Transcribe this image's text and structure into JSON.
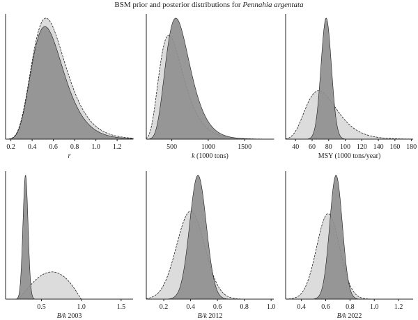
{
  "figure": {
    "title_prefix": "BSM prior and posterior distributions for",
    "title_species": "Pennahia argentata"
  },
  "legend": {
    "prior": {
      "fill": "#dcdcdc"
    },
    "posterior": {
      "fill": "#8f8f8f"
    }
  },
  "chart_data": [
    {
      "type": "area",
      "xlabel_italic": "r",
      "xlabel_rest": "",
      "xlim": [
        0.15,
        1.35
      ],
      "xticks": [
        0.2,
        0.4,
        0.6,
        0.8,
        1.0,
        1.2
      ],
      "xtick_labels": [
        "0.2",
        "0.4",
        "0.6",
        "0.8",
        "1.0",
        "1.2"
      ],
      "series": [
        {
          "role": "prior",
          "dist": "lognormal",
          "mode": 0.53,
          "sd": 0.3
        },
        {
          "role": "posterior",
          "dist": "lognormal",
          "mode": 0.52,
          "sd": 0.29,
          "height": 0.93
        }
      ]
    },
    {
      "type": "area",
      "xlabel_italic": "k",
      "xlabel_rest": " (1000 tons)",
      "xlim": [
        150,
        1900
      ],
      "xticks": [
        500,
        1000,
        1500
      ],
      "xtick_labels": [
        "500",
        "1000",
        "1500"
      ],
      "series": [
        {
          "role": "prior",
          "dist": "lognormal",
          "mode": 460,
          "sd": 0.36,
          "height": 0.86
        },
        {
          "role": "posterior",
          "dist": "lognormal",
          "mode": 555,
          "sd": 0.3
        }
      ]
    },
    {
      "type": "area",
      "xlabel_italic": "",
      "xlabel_rest": "MSY (1000 tons/year)",
      "xlim": [
        28,
        182
      ],
      "xticks": [
        40,
        60,
        80,
        100,
        120,
        140,
        160,
        180
      ],
      "xtick_labels": [
        "40",
        "60",
        "80",
        "100",
        "120",
        "140",
        "160",
        "180"
      ],
      "series": [
        {
          "role": "prior",
          "dist": "lognormal",
          "mode": 68,
          "sd": 0.28,
          "height": 0.4
        },
        {
          "role": "posterior",
          "dist": "normal",
          "mean": 77,
          "sd": 6.3
        }
      ]
    },
    {
      "type": "area",
      "xlabel_italic": "B/k",
      "xlabel_rest": " 2003",
      "xlim": [
        0.05,
        1.65
      ],
      "xticks": [
        0.5,
        1.0,
        1.5
      ],
      "xtick_labels": [
        "0.5",
        "1.0",
        "1.5"
      ],
      "series": [
        {
          "role": "prior",
          "dist": "beta",
          "range": [
            0.2,
            1.0
          ],
          "alpha": 2.3,
          "beta": 2.1,
          "height": 0.22
        },
        {
          "role": "posterior",
          "dist": "normal",
          "mean": 0.3,
          "sd": 0.032
        }
      ]
    },
    {
      "type": "area",
      "xlabel_italic": "B/k",
      "xlabel_rest": " 2012",
      "xlim": [
        0.07,
        1.02
      ],
      "xticks": [
        0.2,
        0.4,
        0.6,
        0.8,
        1.0
      ],
      "xtick_labels": [
        "0.2",
        "0.4",
        "0.6",
        "0.8",
        "1.0"
      ],
      "series": [
        {
          "role": "prior",
          "dist": "normal",
          "mean": 0.4,
          "sd": 0.105,
          "height": 0.71
        },
        {
          "role": "posterior",
          "dist": "normal",
          "mean": 0.455,
          "sd": 0.062
        }
      ]
    },
    {
      "type": "area",
      "xlabel_italic": "B/k",
      "xlabel_rest": " 2022",
      "xlim": [
        0.27,
        1.32
      ],
      "xticks": [
        0.4,
        0.6,
        0.8,
        1.0,
        1.2
      ],
      "xtick_labels": [
        "0.4",
        "0.6",
        "0.8",
        "1.0",
        "1.2"
      ],
      "series": [
        {
          "role": "prior",
          "dist": "normal",
          "mean": 0.62,
          "sd": 0.095,
          "height": 0.69
        },
        {
          "role": "posterior",
          "dist": "normal",
          "mean": 0.685,
          "sd": 0.052
        }
      ]
    }
  ]
}
